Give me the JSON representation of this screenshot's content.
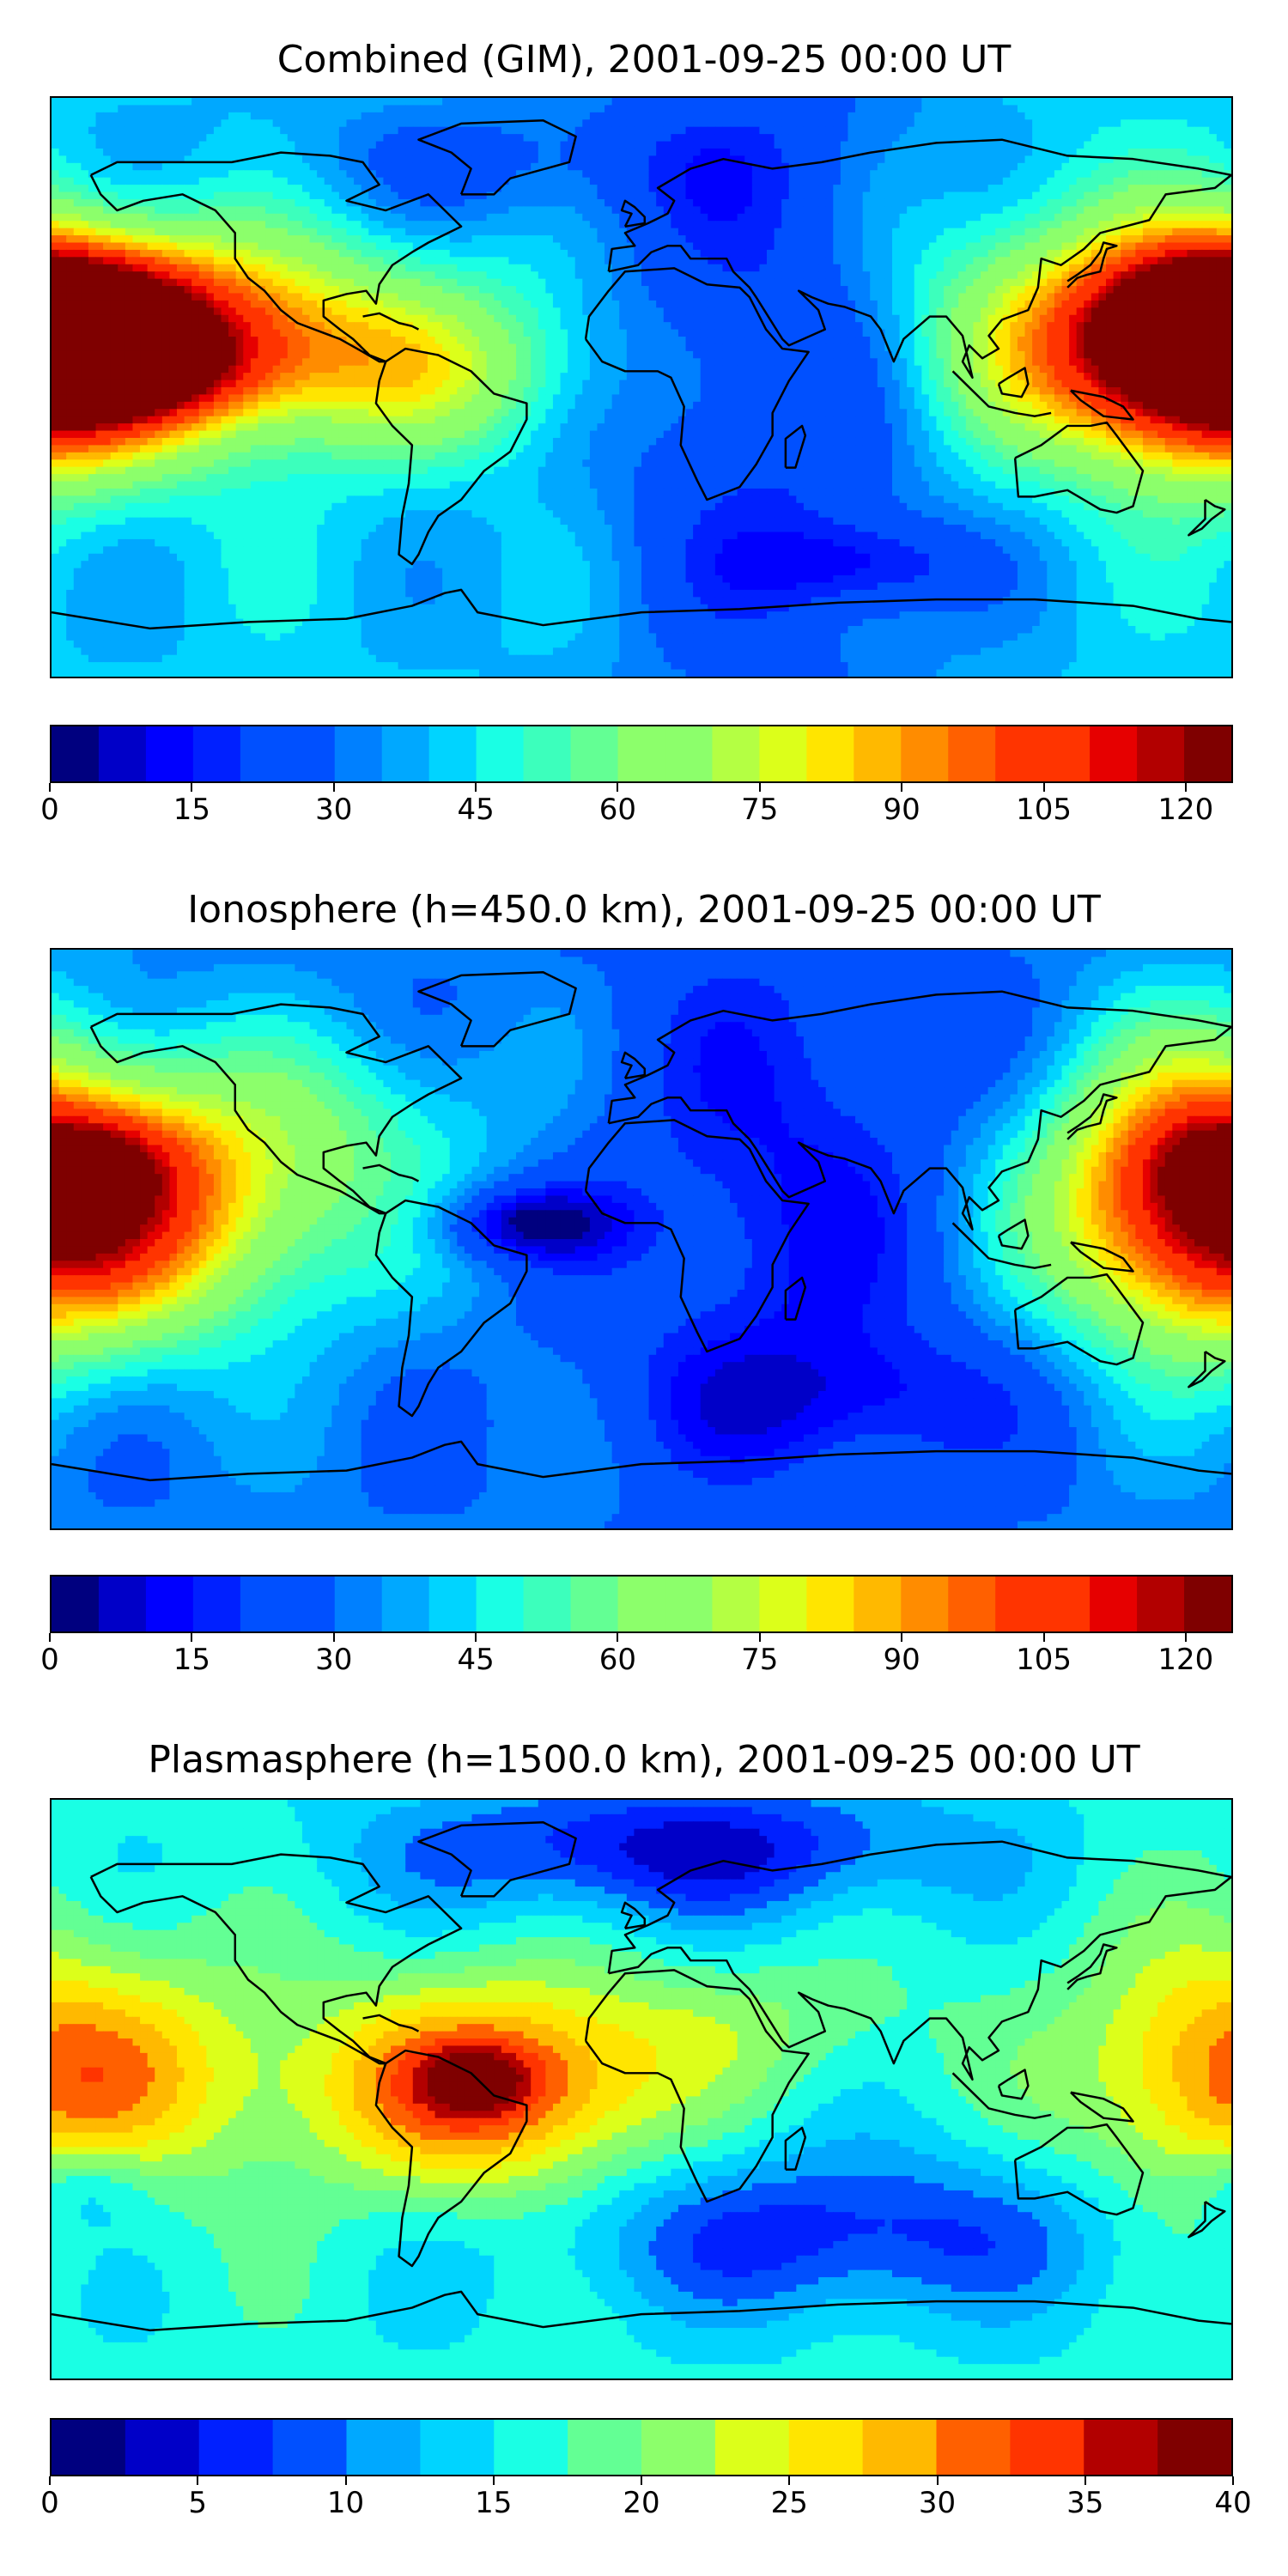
{
  "panels": [
    {
      "title": "Combined (GIM), 2001-09-25 00:00 UT",
      "colorbar": {
        "min": 0,
        "max": 125,
        "step": 5,
        "ticks": [
          "0",
          "15",
          "30",
          "45",
          "60",
          "75",
          "90",
          "105",
          "120"
        ],
        "tick_values": [
          0,
          15,
          30,
          45,
          60,
          75,
          90,
          105,
          120
        ]
      },
      "field": {
        "background_level": 0.33,
        "blobs": [
          {
            "lon": -160,
            "lat": 15,
            "sx": 55,
            "sy": 22,
            "amp": 0.62
          },
          {
            "lon": -175,
            "lat": 25,
            "sx": 25,
            "sy": 12,
            "amp": 0.2
          },
          {
            "lon": -150,
            "lat": 5,
            "sx": 25,
            "sy": 10,
            "amp": 0.18
          },
          {
            "lon": 172,
            "lat": 10,
            "sx": 28,
            "sy": 25,
            "amp": 0.55
          },
          {
            "lon": 110,
            "lat": 20,
            "sx": 30,
            "sy": 35,
            "amp": 0.12
          },
          {
            "lon": 40,
            "lat": 0,
            "sx": 40,
            "sy": 90,
            "amp": -0.18
          },
          {
            "lon": 70,
            "lat": -55,
            "sx": 25,
            "sy": 10,
            "amp": -0.15
          },
          {
            "lon": -40,
            "lat": 70,
            "sx": 60,
            "sy": 15,
            "amp": -0.1
          },
          {
            "lon": -60,
            "lat": 5,
            "sx": 35,
            "sy": 18,
            "amp": 0.18
          }
        ]
      }
    },
    {
      "title": "Ionosphere  (h=450.0 km), 2001-09-25 00:00 UT",
      "colorbar": {
        "min": 0,
        "max": 125,
        "step": 5,
        "ticks": [
          "0",
          "15",
          "30",
          "45",
          "60",
          "75",
          "90",
          "105",
          "120"
        ],
        "tick_values": [
          0,
          15,
          30,
          45,
          60,
          75,
          90,
          105,
          120
        ]
      },
      "field": {
        "background_level": 0.25,
        "blobs": [
          {
            "lon": -160,
            "lat": 10,
            "sx": 50,
            "sy": 28,
            "amp": 0.5
          },
          {
            "lon": -170,
            "lat": 25,
            "sx": 20,
            "sy": 10,
            "amp": 0.15
          },
          {
            "lon": 170,
            "lat": 15,
            "sx": 30,
            "sy": 35,
            "amp": 0.4
          },
          {
            "lon": -35,
            "lat": 5,
            "sx": 20,
            "sy": 8,
            "amp": -0.22
          },
          {
            "lon": 45,
            "lat": 15,
            "sx": 40,
            "sy": 60,
            "amp": -0.14
          },
          {
            "lon": 60,
            "lat": -50,
            "sx": 40,
            "sy": 15,
            "amp": -0.12
          },
          {
            "lon": -90,
            "lat": 40,
            "sx": 40,
            "sy": 20,
            "amp": 0.1
          }
        ]
      }
    },
    {
      "title": "Plasmasphere (h=1500.0 km), 2001-09-25 00:00 UT",
      "colorbar": {
        "min": 0,
        "max": 40,
        "step": 2.5,
        "ticks": [
          "0",
          "5",
          "10",
          "15",
          "20",
          "25",
          "30",
          "35",
          "40"
        ],
        "tick_values": [
          0,
          5,
          10,
          15,
          20,
          25,
          30,
          35,
          40
        ]
      },
      "field": {
        "background_level": 0.4,
        "blobs": [
          {
            "lon": -45,
            "lat": 0,
            "sx": 35,
            "sy": 22,
            "amp": 0.45
          },
          {
            "lon": -50,
            "lat": 3,
            "sx": 12,
            "sy": 7,
            "amp": 0.2
          },
          {
            "lon": -150,
            "lat": 5,
            "sx": 45,
            "sy": 25,
            "amp": 0.18
          },
          {
            "lon": 175,
            "lat": 5,
            "sx": 30,
            "sy": 30,
            "amp": 0.25
          },
          {
            "lon": 10,
            "lat": 75,
            "sx": 60,
            "sy": 15,
            "amp": -0.3
          },
          {
            "lon": 60,
            "lat": -45,
            "sx": 60,
            "sy": 18,
            "amp": -0.25
          },
          {
            "lon": -170,
            "lat": -30,
            "sx": 15,
            "sy": 10,
            "amp": -0.15
          },
          {
            "lon": 30,
            "lat": 20,
            "sx": 40,
            "sy": 15,
            "amp": 0.1
          }
        ]
      }
    }
  ],
  "colormap": [
    "#00007f",
    "#0000c8",
    "#0000ff",
    "#0020ff",
    "#0050ff",
    "#0080ff",
    "#00a8ff",
    "#00d4ff",
    "#1affe4",
    "#3cffbc",
    "#63ff94",
    "#8cff6b",
    "#b4ff43",
    "#dcff1a",
    "#ffe500",
    "#ffb900",
    "#ff8c00",
    "#ff6000",
    "#ff3400",
    "#e60000",
    "#b20000",
    "#7f0000"
  ]
}
